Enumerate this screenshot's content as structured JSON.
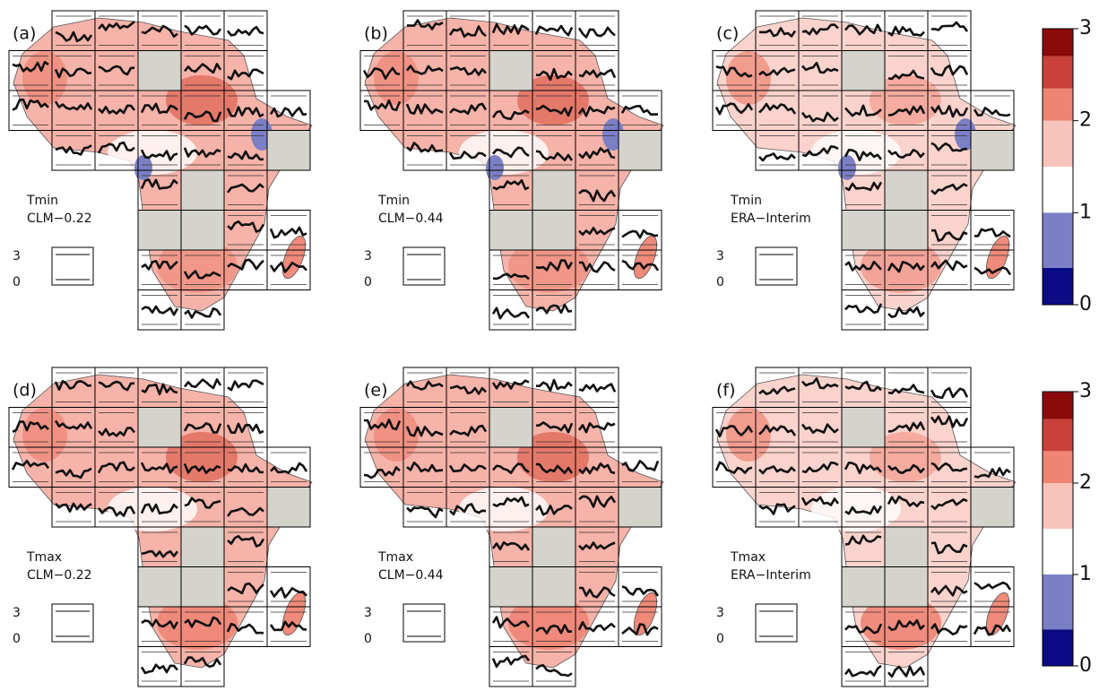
{
  "panels": [
    {
      "label": "(a)",
      "variable": "Tmin",
      "dataset": "CLM−0.22"
    },
    {
      "label": "(b)",
      "variable": "Tmin",
      "dataset": "CLM−0.44"
    },
    {
      "label": "(c)",
      "variable": "Tmin",
      "dataset": "ERA−Interim"
    },
    {
      "label": "(d)",
      "variable": "Tmax",
      "dataset": "CLM−0.22"
    },
    {
      "label": "(e)",
      "variable": "Tmax",
      "dataset": "CLM−0.44"
    },
    {
      "label": "(f)",
      "variable": "Tmax",
      "dataset": "ERA−Interim"
    }
  ],
  "scale_legend": {
    "top": "3",
    "bottom": "0"
  },
  "colorbar": {
    "ylim": [
      0,
      3
    ],
    "yticks": [
      0,
      1,
      2,
      3
    ],
    "breaks": [
      0,
      0.4,
      1,
      1.5,
      2,
      2.35,
      2.7,
      3
    ],
    "colors": [
      "#0b0b86",
      "#7b7fc4",
      "#ffffff",
      "#f8c3bb",
      "#ee8474",
      "#c9413a",
      "#8b0a0a"
    ]
  }
}
